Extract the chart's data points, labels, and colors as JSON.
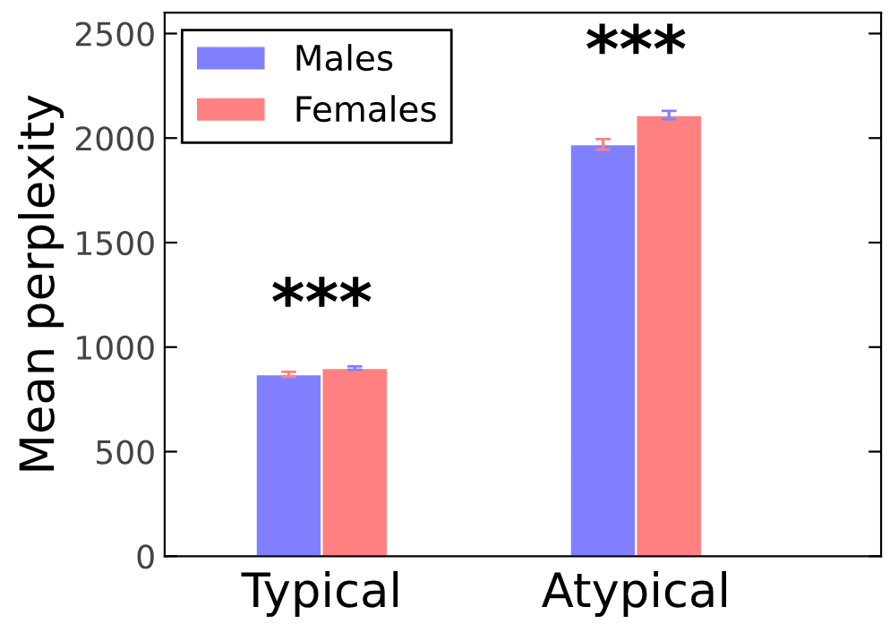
{
  "chart_data": {
    "type": "bar",
    "categories": [
      "Typical",
      "Atypical"
    ],
    "series": [
      {
        "name": "Males",
        "color": "#8080ff",
        "values": [
          870,
          1970
        ],
        "errors": [
          12,
          25
        ]
      },
      {
        "name": "Females",
        "color": "#ff8080",
        "values": [
          900,
          2110
        ],
        "errors": [
          8,
          20
        ]
      }
    ],
    "ylabel": "Mean perplexity",
    "ylim": [
      0,
      2600
    ],
    "yticks": [
      0,
      500,
      1000,
      1500,
      2000,
      2500
    ],
    "grid": false,
    "legend": "top left",
    "annotations": [
      "***",
      "***"
    ]
  }
}
